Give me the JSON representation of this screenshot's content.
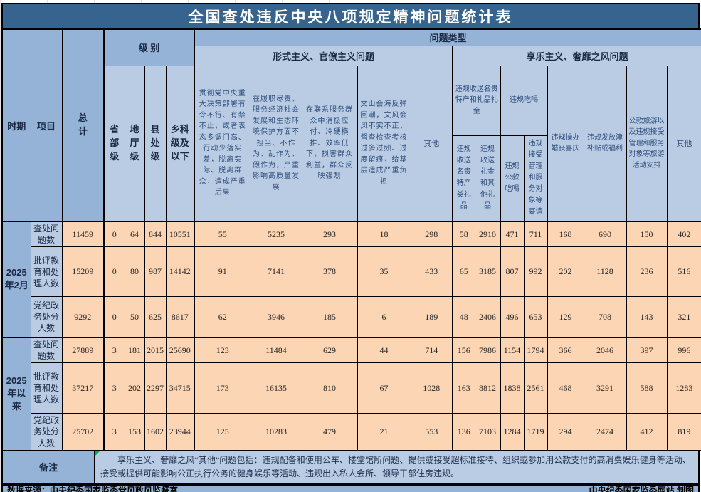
{
  "chart_data": {
    "type": "table",
    "title": "全国查处违反中央八项规定精神问题统计表",
    "header": {
      "period": "时期",
      "item": "项目",
      "total": "总计",
      "level_group": "级 别",
      "problem_type": "问题类型",
      "formalism_group": "形式主义、官僚主义问题",
      "hedonism_group": "享乐主义、奢靡之风问题",
      "levels": [
        "省部级",
        "地厅级",
        "县处级",
        "乡科级及以下"
      ],
      "formalism_cols": [
        "贯彻党中央重大决策部署有令不行、有禁不止，或者表态多调门高、行动少落实差，脱离实际、脱离群众，造成严重后果",
        "在履职尽责、服务经济社会发展和生态环境保护方面不担当、不作为、乱作为、假作为，严重影响高质量发展",
        "在联系服务群众中消极应付、冷硬横推、效率低下，损害群众利益，群众反映强烈",
        "文山会海反弹回潮，文风会风不实不正，督查检查考核过多过频、过度留痕，给基层造成严重负担",
        "其他"
      ],
      "gift_group": "违规收送名贵特产和礼品礼金",
      "gift_sub": [
        "违规收送名贵特产类礼品",
        "违规收送礼金和其他礼品"
      ],
      "dining_group": "违规吃喝",
      "dining_sub": [
        "违规公款吃喝",
        "违规接受管理和服务对象等宴请"
      ],
      "hedonism_cols": [
        "违规操办婚丧喜庆",
        "违规发放津补贴或福利",
        "公款旅游以及违规接受管理和服务对象等旅游活动安排",
        "其他"
      ]
    },
    "groups": [
      {
        "period": "2025年2月",
        "rows": [
          {
            "label": "查处问题数",
            "values": [
              11459,
              0,
              64,
              844,
              10551,
              55,
              5235,
              293,
              18,
              298,
              58,
              2910,
              471,
              711,
              168,
              690,
              150,
              402
            ]
          },
          {
            "label": "批评教育和处理人数",
            "values": [
              15209,
              0,
              80,
              987,
              14142,
              91,
              7141,
              378,
              35,
              433,
              65,
              3185,
              807,
              992,
              202,
              1128,
              236,
              516
            ]
          },
          {
            "label": "党纪政务处分人数",
            "values": [
              9292,
              0,
              50,
              625,
              8617,
              62,
              3946,
              185,
              6,
              189,
              48,
              2406,
              496,
              653,
              129,
              708,
              143,
              321
            ]
          }
        ]
      },
      {
        "period": "2025年以来",
        "rows": [
          {
            "label": "查处问题数",
            "values": [
              27889,
              3,
              181,
              2015,
              25690,
              123,
              11484,
              629,
              44,
              714,
              156,
              7986,
              1154,
              1794,
              366,
              2046,
              397,
              996
            ]
          },
          {
            "label": "批评教育和处理人数",
            "values": [
              37217,
              3,
              202,
              2297,
              34715,
              173,
              16135,
              810,
              67,
              1028,
              163,
              8812,
              1838,
              2561,
              468,
              3291,
              588,
              1283
            ]
          },
          {
            "label": "党纪政务处分人数",
            "values": [
              25702,
              3,
              153,
              1602,
              23944,
              125,
              10283,
              479,
              21,
              553,
              136,
              7103,
              1284,
              1719,
              294,
              2474,
              412,
              819
            ]
          }
        ]
      }
    ],
    "note": {
      "label": "备注",
      "text": "享乐主义、奢靡之风“其他”问题包括：违规配备和使用公车、楼堂馆所问题、提供或接受超标准接待、组织或参加用公款支付的高消费娱乐健身等活动、接受或提供可能影响公正执行公务的健身娱乐等活动、违规出入私人会所、领导干部住房违规。"
    },
    "footer": {
      "source": "数据来源：中央纪委国家监委党风政风监督室",
      "credit": "中央纪委国家监委网站 制图"
    }
  },
  "colors": {
    "title_bg": "#36648E",
    "header_medium": "#95B3D7",
    "header_light": "#B9CCE3",
    "data_bg": "#FCD5B4",
    "border": "#000000",
    "artifact_green": "#00B050"
  }
}
